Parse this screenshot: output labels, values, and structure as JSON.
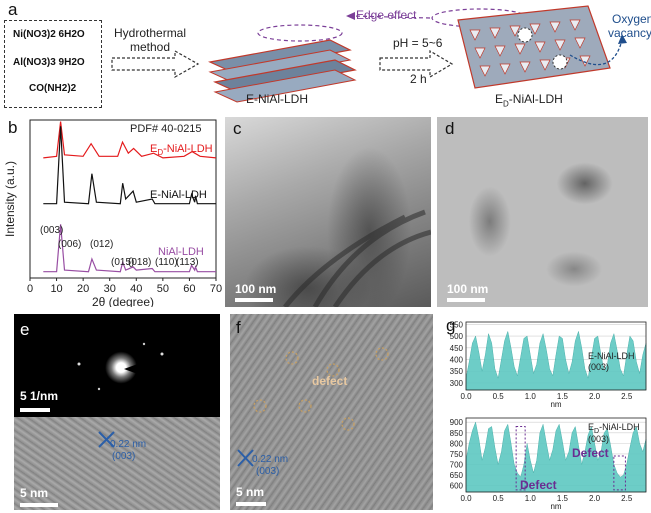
{
  "panel_a": {
    "label": "a",
    "reactants": [
      "Ni(NO3)2 6H2O",
      "Al(NO3)3 9H2O",
      "CO(NH2)2"
    ],
    "step1_line1": "Hydrothermal",
    "step1_line2": "method",
    "product1": "E-NiAl-LDH",
    "step2_top": "pH = 5~6",
    "step2_bottom": "2 h",
    "product2_prefix": "E",
    "product2_sub": "D",
    "product2_suffix": "-NiAl-LDH",
    "edge_effect": "Edge effect",
    "oxygen_vacancy_line1": "Oxygen",
    "oxygen_vacancy_line2": "vacancy"
  },
  "panel_b": {
    "label": "b",
    "pdf_label": "PDF# 40-0215",
    "peak_labels": [
      "(003)",
      "(006)",
      "(012)",
      "(015)",
      "(018)",
      "(110)",
      "(113)"
    ]
  },
  "panel_c": {
    "label": "c",
    "scale": "100 nm"
  },
  "panel_d": {
    "label": "d",
    "scale": "100 nm"
  },
  "panel_e": {
    "label": "e",
    "scale_top": "5 1/nm",
    "scale_bottom": "5 nm",
    "lattice_line1": "0.22 nm",
    "lattice_line2": "(003)"
  },
  "panel_f": {
    "label": "f",
    "scale": "5 nm",
    "defect": "defect",
    "lattice_line1": "0.22 nm",
    "lattice_line2": "(003)"
  },
  "panel_g": {
    "label": "g",
    "top_title_line1": "E-NiAl-LDH",
    "top_title_line2": "(003)",
    "bottom_title_prefix": "E",
    "bottom_title_sub": "D",
    "bottom_title_suffix": "-NiAl-LDH",
    "bottom_title_line2": "(003)",
    "defect1": "Defect",
    "defect2": "Defect",
    "xlabel": "nm"
  },
  "chart_data": [
    {
      "type": "line",
      "title": "",
      "xlabel": "2θ (degree)",
      "ylabel": "Intensity (a.u.)",
      "xlim": [
        0,
        70
      ],
      "xticks": [
        0,
        10,
        20,
        30,
        40,
        50,
        60,
        70
      ],
      "series": [
        {
          "name": "ED-NiAl-LDH",
          "color": "#e41a1c",
          "x": [
            5,
            10,
            11.5,
            13,
            20,
            23,
            26,
            33,
            34.8,
            37,
            39,
            42,
            46.5,
            50,
            58,
            61,
            64,
            70
          ],
          "y": [
            0.76,
            0.77,
            0.99,
            0.78,
            0.77,
            0.85,
            0.77,
            0.77,
            0.86,
            0.79,
            0.82,
            0.77,
            0.79,
            0.76,
            0.77,
            0.8,
            0.77,
            0.76
          ]
        },
        {
          "name": "E-NiAl-LDH",
          "color": "#111111",
          "x": [
            5,
            10,
            11.5,
            13,
            22,
            23.3,
            25,
            34,
            34.9,
            36,
            38.8,
            40,
            46,
            47,
            60,
            60.8,
            62,
            62.3,
            63,
            70
          ],
          "y": [
            0.47,
            0.47,
            0.96,
            0.48,
            0.47,
            0.66,
            0.48,
            0.47,
            0.6,
            0.5,
            0.55,
            0.48,
            0.5,
            0.47,
            0.47,
            0.53,
            0.48,
            0.52,
            0.47,
            0.47
          ]
        },
        {
          "name": "NiAl-LDH",
          "color": "#984ea3",
          "x": [
            5,
            10,
            11.5,
            13,
            22,
            23.3,
            25,
            34,
            34.9,
            36,
            38.8,
            40,
            46,
            47,
            60,
            60.8,
            62,
            62.3,
            63,
            70
          ],
          "y": [
            0.04,
            0.04,
            0.34,
            0.05,
            0.04,
            0.12,
            0.05,
            0.04,
            0.1,
            0.05,
            0.07,
            0.05,
            0.06,
            0.04,
            0.04,
            0.08,
            0.05,
            0.07,
            0.04,
            0.04
          ]
        }
      ]
    },
    {
      "type": "area",
      "title": "E-NiAl-LDH (003)",
      "xlabel": "nm",
      "xlim": [
        0,
        2.8
      ],
      "ylim": [
        270,
        560
      ],
      "xticks": [
        0.0,
        0.5,
        1.0,
        1.5,
        2.0,
        2.5
      ],
      "yticks": [
        300,
        350,
        400,
        450,
        500,
        550
      ],
      "color": "#5ec8c2",
      "x_step": 0.05,
      "y": [
        320,
        390,
        470,
        500,
        430,
        350,
        420,
        510,
        470,
        360,
        320,
        400,
        480,
        520,
        450,
        370,
        330,
        410,
        490,
        500,
        420,
        340,
        380,
        470,
        510,
        440,
        360,
        330,
        420,
        500,
        490,
        400,
        340,
        390,
        480,
        520,
        450,
        360,
        320,
        410,
        490,
        500,
        420,
        350,
        380,
        470,
        510,
        440,
        360,
        330,
        420,
        500,
        480,
        390,
        340,
        420,
        470
      ]
    },
    {
      "type": "area",
      "title": "ED-NiAl-LDH (003)",
      "xlabel": "nm",
      "xlim": [
        0,
        2.8
      ],
      "ylim": [
        570,
        920
      ],
      "xticks": [
        0.0,
        0.5,
        1.0,
        1.5,
        2.0,
        2.5
      ],
      "yticks": [
        600,
        650,
        700,
        750,
        800,
        850,
        900
      ],
      "color": "#5ec8c2",
      "x_step": 0.05,
      "y": [
        720,
        800,
        860,
        900,
        820,
        720,
        780,
        870,
        880,
        780,
        700,
        760,
        860,
        890,
        800,
        700,
        660,
        640,
        700,
        800,
        720,
        660,
        720,
        850,
        890,
        800,
        720,
        770,
        860,
        890,
        810,
        720,
        760,
        850,
        880,
        790,
        700,
        760,
        840,
        880,
        800,
        720,
        760,
        850,
        870,
        790,
        700,
        660,
        640,
        650,
        700,
        780,
        850,
        880,
        800,
        760,
        820
      ]
    }
  ]
}
